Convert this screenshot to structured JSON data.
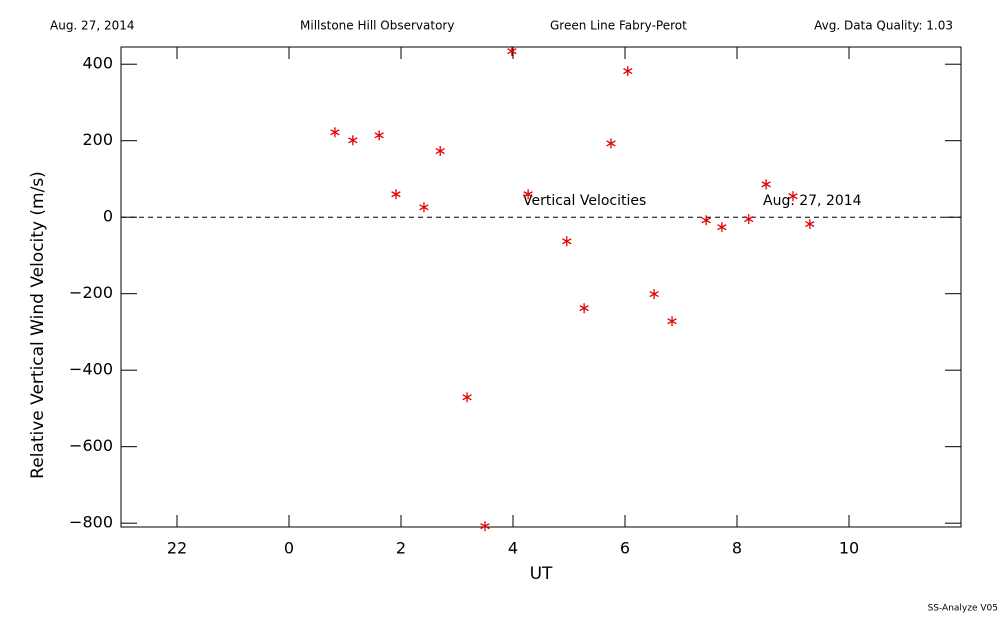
{
  "header": {
    "date": "Aug. 27, 2014",
    "observatory": "Millstone Hill Observatory",
    "instrument": "Green Line Fabry-Perot",
    "quality": "Avg. Data Quality: 1.03"
  },
  "chart_data": {
    "type": "scatter",
    "x_label": "UT",
    "y_label": "Relative Vertical Wind Velocity (m/s)",
    "annotations": [
      "Vertical Velocities",
      "Aug. 27, 2014"
    ],
    "x": [
      0.82,
      1.14,
      1.61,
      1.91,
      2.41,
      2.7,
      3.18,
      3.5,
      3.98,
      4.27,
      4.96,
      5.27,
      5.75,
      6.05,
      6.52,
      6.84,
      7.45,
      7.73,
      8.21,
      8.52,
      9.0,
      9.3
    ],
    "values": [
      222,
      201,
      214,
      60,
      26,
      173,
      -471,
      -808,
      434,
      60,
      -63,
      -238,
      193,
      382,
      -201,
      -272,
      -8,
      -26,
      -5,
      86,
      55,
      -18
    ],
    "color": "#e00000",
    "xlim": [
      -3,
      12
    ],
    "ylim": [
      -810,
      445
    ],
    "xticks": [
      {
        "value": -2,
        "label": "22"
      },
      0,
      2,
      4,
      6,
      8,
      10
    ],
    "yticks": [
      {
        "value": -800,
        "label": "−800"
      },
      {
        "value": -600,
        "label": "−600"
      },
      {
        "value": -400,
        "label": "−400"
      },
      {
        "value": -200,
        "label": "−200"
      },
      0,
      200,
      400
    ],
    "reference_line": 0
  },
  "footer": "SS-Analyze V05"
}
